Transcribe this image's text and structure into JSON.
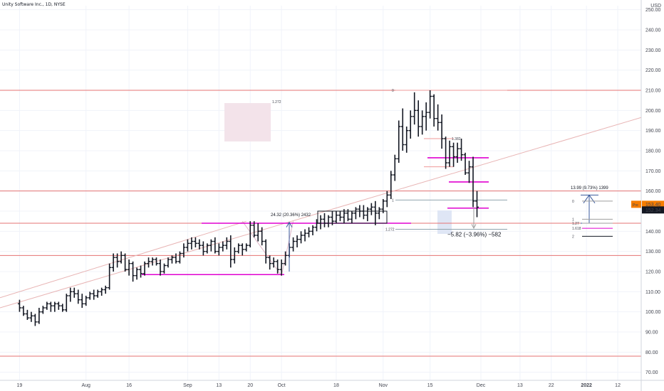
{
  "chart_data": {
    "type": "bar",
    "style": "ohlc",
    "title": "Unity Software Inc., 1D, NYSE",
    "currency_label": "USD",
    "ylim": [
      66,
      252
    ],
    "y_ticks": [
      70,
      80,
      90,
      100,
      110,
      120,
      130,
      140,
      150,
      160,
      170,
      180,
      190,
      200,
      210,
      220,
      230,
      240,
      250
    ],
    "y_tick_labels": [
      "70.00",
      "80.00",
      "90.00",
      "100.00",
      "110.00",
      "120.00",
      "130.00",
      "140.00",
      "150.00",
      "160.00",
      "170.00",
      "180.00",
      "190.00",
      "200.00",
      "210.00",
      "220.00",
      "230.00",
      "240.00",
      "250.00"
    ],
    "x_range": [
      -5,
      159
    ],
    "x_ticks": [
      {
        "x": 0,
        "label": "19"
      },
      {
        "x": 17,
        "label": "Aug"
      },
      {
        "x": 28,
        "label": "16"
      },
      {
        "x": 43,
        "label": "Sep"
      },
      {
        "x": 51,
        "label": "13"
      },
      {
        "x": 59,
        "label": "20"
      },
      {
        "x": 67,
        "label": "Oct"
      },
      {
        "x": 81,
        "label": "18"
      },
      {
        "x": 93,
        "label": "Nov"
      },
      {
        "x": 105,
        "label": "15"
      },
      {
        "x": 118,
        "label": "Dec"
      },
      {
        "x": 128,
        "label": "13"
      },
      {
        "x": 136,
        "label": "22"
      },
      {
        "x": 145,
        "label": "2022"
      },
      {
        "x": 153,
        "label": "12"
      }
    ],
    "bars": [
      [
        104,
        106,
        100,
        102
      ],
      [
        102,
        103,
        98,
        99
      ],
      [
        99,
        101,
        96,
        97
      ],
      [
        97,
        100,
        95,
        98
      ],
      [
        98,
        99,
        93,
        95
      ],
      [
        95,
        102,
        94,
        100
      ],
      [
        100,
        103,
        99,
        102
      ],
      [
        102,
        105,
        101,
        104
      ],
      [
        104,
        105,
        100,
        103
      ],
      [
        103,
        105,
        100,
        104
      ],
      [
        104,
        105,
        101,
        103
      ],
      [
        103,
        104,
        100,
        101
      ],
      [
        101,
        109,
        100,
        108
      ],
      [
        108,
        112,
        105,
        110
      ],
      [
        110,
        112,
        107,
        109
      ],
      [
        109,
        111,
        104,
        106
      ],
      [
        106,
        109,
        102,
        104
      ],
      [
        104,
        108,
        103,
        107
      ],
      [
        107,
        110,
        106,
        109
      ],
      [
        109,
        111,
        106,
        108
      ],
      [
        108,
        111,
        107,
        110
      ],
      [
        110,
        112,
        108,
        111
      ],
      [
        111,
        113,
        109,
        112
      ],
      [
        112,
        124,
        111,
        122
      ],
      [
        122,
        129,
        120,
        127
      ],
      [
        127,
        129,
        122,
        125
      ],
      [
        125,
        130,
        124,
        128
      ],
      [
        128,
        129,
        120,
        121
      ],
      [
        121,
        126,
        118,
        124
      ],
      [
        124,
        125,
        115,
        118
      ],
      [
        118,
        122,
        116,
        121
      ],
      [
        121,
        123,
        117,
        119
      ],
      [
        119,
        125,
        118,
        124
      ],
      [
        124,
        127,
        122,
        125
      ],
      [
        125,
        127,
        123,
        126
      ],
      [
        126,
        127,
        123,
        124
      ],
      [
        124,
        126,
        118,
        120
      ],
      [
        120,
        124,
        119,
        123
      ],
      [
        123,
        127,
        122,
        126
      ],
      [
        126,
        128,
        124,
        127
      ],
      [
        127,
        129,
        124,
        125
      ],
      [
        125,
        130,
        124,
        129
      ],
      [
        129,
        134,
        127,
        132
      ],
      [
        132,
        136,
        130,
        134
      ],
      [
        134,
        137,
        131,
        135
      ],
      [
        135,
        137,
        132,
        134
      ],
      [
        134,
        136,
        131,
        133
      ],
      [
        133,
        135,
        128,
        130
      ],
      [
        130,
        134,
        129,
        133
      ],
      [
        133,
        136,
        130,
        135
      ],
      [
        135,
        137,
        129,
        130
      ],
      [
        130,
        134,
        128,
        132
      ],
      [
        132,
        135,
        130,
        133
      ],
      [
        133,
        137,
        131,
        135
      ],
      [
        135,
        138,
        122,
        126
      ],
      [
        126,
        132,
        124,
        130
      ],
      [
        130,
        134,
        129,
        133
      ],
      [
        133,
        134,
        128,
        131
      ],
      [
        131,
        134,
        130,
        133
      ],
      [
        133,
        145,
        132,
        143
      ],
      [
        143,
        145,
        137,
        138
      ],
      [
        138,
        144,
        135,
        140
      ],
      [
        140,
        142,
        133,
        135
      ],
      [
        135,
        136,
        124,
        127
      ],
      [
        127,
        128,
        121,
        124
      ],
      [
        124,
        127,
        122,
        125
      ],
      [
        125,
        126,
        119,
        121
      ],
      [
        121,
        126,
        118,
        124
      ],
      [
        124,
        130,
        123,
        128
      ],
      [
        128,
        134,
        127,
        132
      ],
      [
        132,
        137,
        130,
        135
      ],
      [
        135,
        138,
        132,
        136
      ],
      [
        136,
        140,
        134,
        138
      ],
      [
        138,
        141,
        135,
        139
      ],
      [
        139,
        142,
        137,
        140
      ],
      [
        140,
        143,
        138,
        142
      ],
      [
        142,
        146,
        140,
        144
      ],
      [
        144,
        148,
        141,
        146
      ],
      [
        146,
        149,
        142,
        144
      ],
      [
        144,
        148,
        142,
        147
      ],
      [
        147,
        150,
        143,
        145
      ],
      [
        145,
        150,
        144,
        148
      ],
      [
        148,
        150,
        145,
        147
      ],
      [
        147,
        151,
        144,
        149
      ],
      [
        149,
        151,
        145,
        146
      ],
      [
        146,
        150,
        144,
        149
      ],
      [
        149,
        152,
        146,
        151
      ],
      [
        151,
        153,
        147,
        150
      ],
      [
        150,
        153,
        146,
        148
      ],
      [
        148,
        152,
        145,
        151
      ],
      [
        151,
        154,
        148,
        152
      ],
      [
        152,
        155,
        143,
        149
      ],
      [
        149,
        152,
        146,
        151
      ],
      [
        151,
        156,
        149,
        155
      ],
      [
        155,
        160,
        152,
        158
      ],
      [
        158,
        170,
        156,
        168
      ],
      [
        168,
        178,
        165,
        176
      ],
      [
        176,
        195,
        174,
        192
      ],
      [
        192,
        201,
        180,
        183
      ],
      [
        183,
        192,
        179,
        190
      ],
      [
        190,
        200,
        186,
        197
      ],
      [
        197,
        209,
        193,
        200
      ],
      [
        200,
        205,
        187,
        192
      ],
      [
        192,
        200,
        188,
        197
      ],
      [
        197,
        204,
        190,
        199
      ],
      [
        199,
        210,
        196,
        207
      ],
      [
        207,
        208,
        192,
        196
      ],
      [
        196,
        203,
        190,
        194
      ],
      [
        194,
        198,
        181,
        186
      ],
      [
        186,
        187,
        171,
        174
      ],
      [
        174,
        185,
        172,
        182
      ],
      [
        182,
        184,
        172,
        177
      ],
      [
        177,
        184,
        174,
        181
      ],
      [
        181,
        186,
        175,
        178
      ],
      [
        178,
        179,
        168,
        169
      ],
      [
        169,
        175,
        164,
        172
      ],
      [
        172,
        177,
        152,
        155
      ],
      [
        155,
        160,
        147,
        152
      ]
    ],
    "series": [
      {
        "values": []
      }
    ],
    "annotations": {
      "hlines_red": [
        210,
        160,
        144,
        128,
        78
      ],
      "range_top": "24.32 (20.36%) 2432",
      "drop": "−5.82 (−3.96%) −582",
      "right_measure": "13.99 (9.73%) 1399",
      "fib_small": [
        "0",
        "1",
        "1.272",
        "1.382",
        "1.272"
      ],
      "right_fib": [
        "0",
        "1",
        "1.27",
        "1.618",
        "2"
      ]
    },
    "price_tags": [
      {
        "label": "Pre",
        "value": "153.40",
        "color": "#f57c00"
      },
      {
        "label": "",
        "value": "152.34",
        "color": "#131722"
      }
    ]
  },
  "colors": {
    "bar": "#131722",
    "grid": "#f0f3fa",
    "red_line": "#e57373",
    "magenta": "#e000d0",
    "blue_arrow": "#3a5a9c",
    "pink_box": "#f3e3ea"
  }
}
